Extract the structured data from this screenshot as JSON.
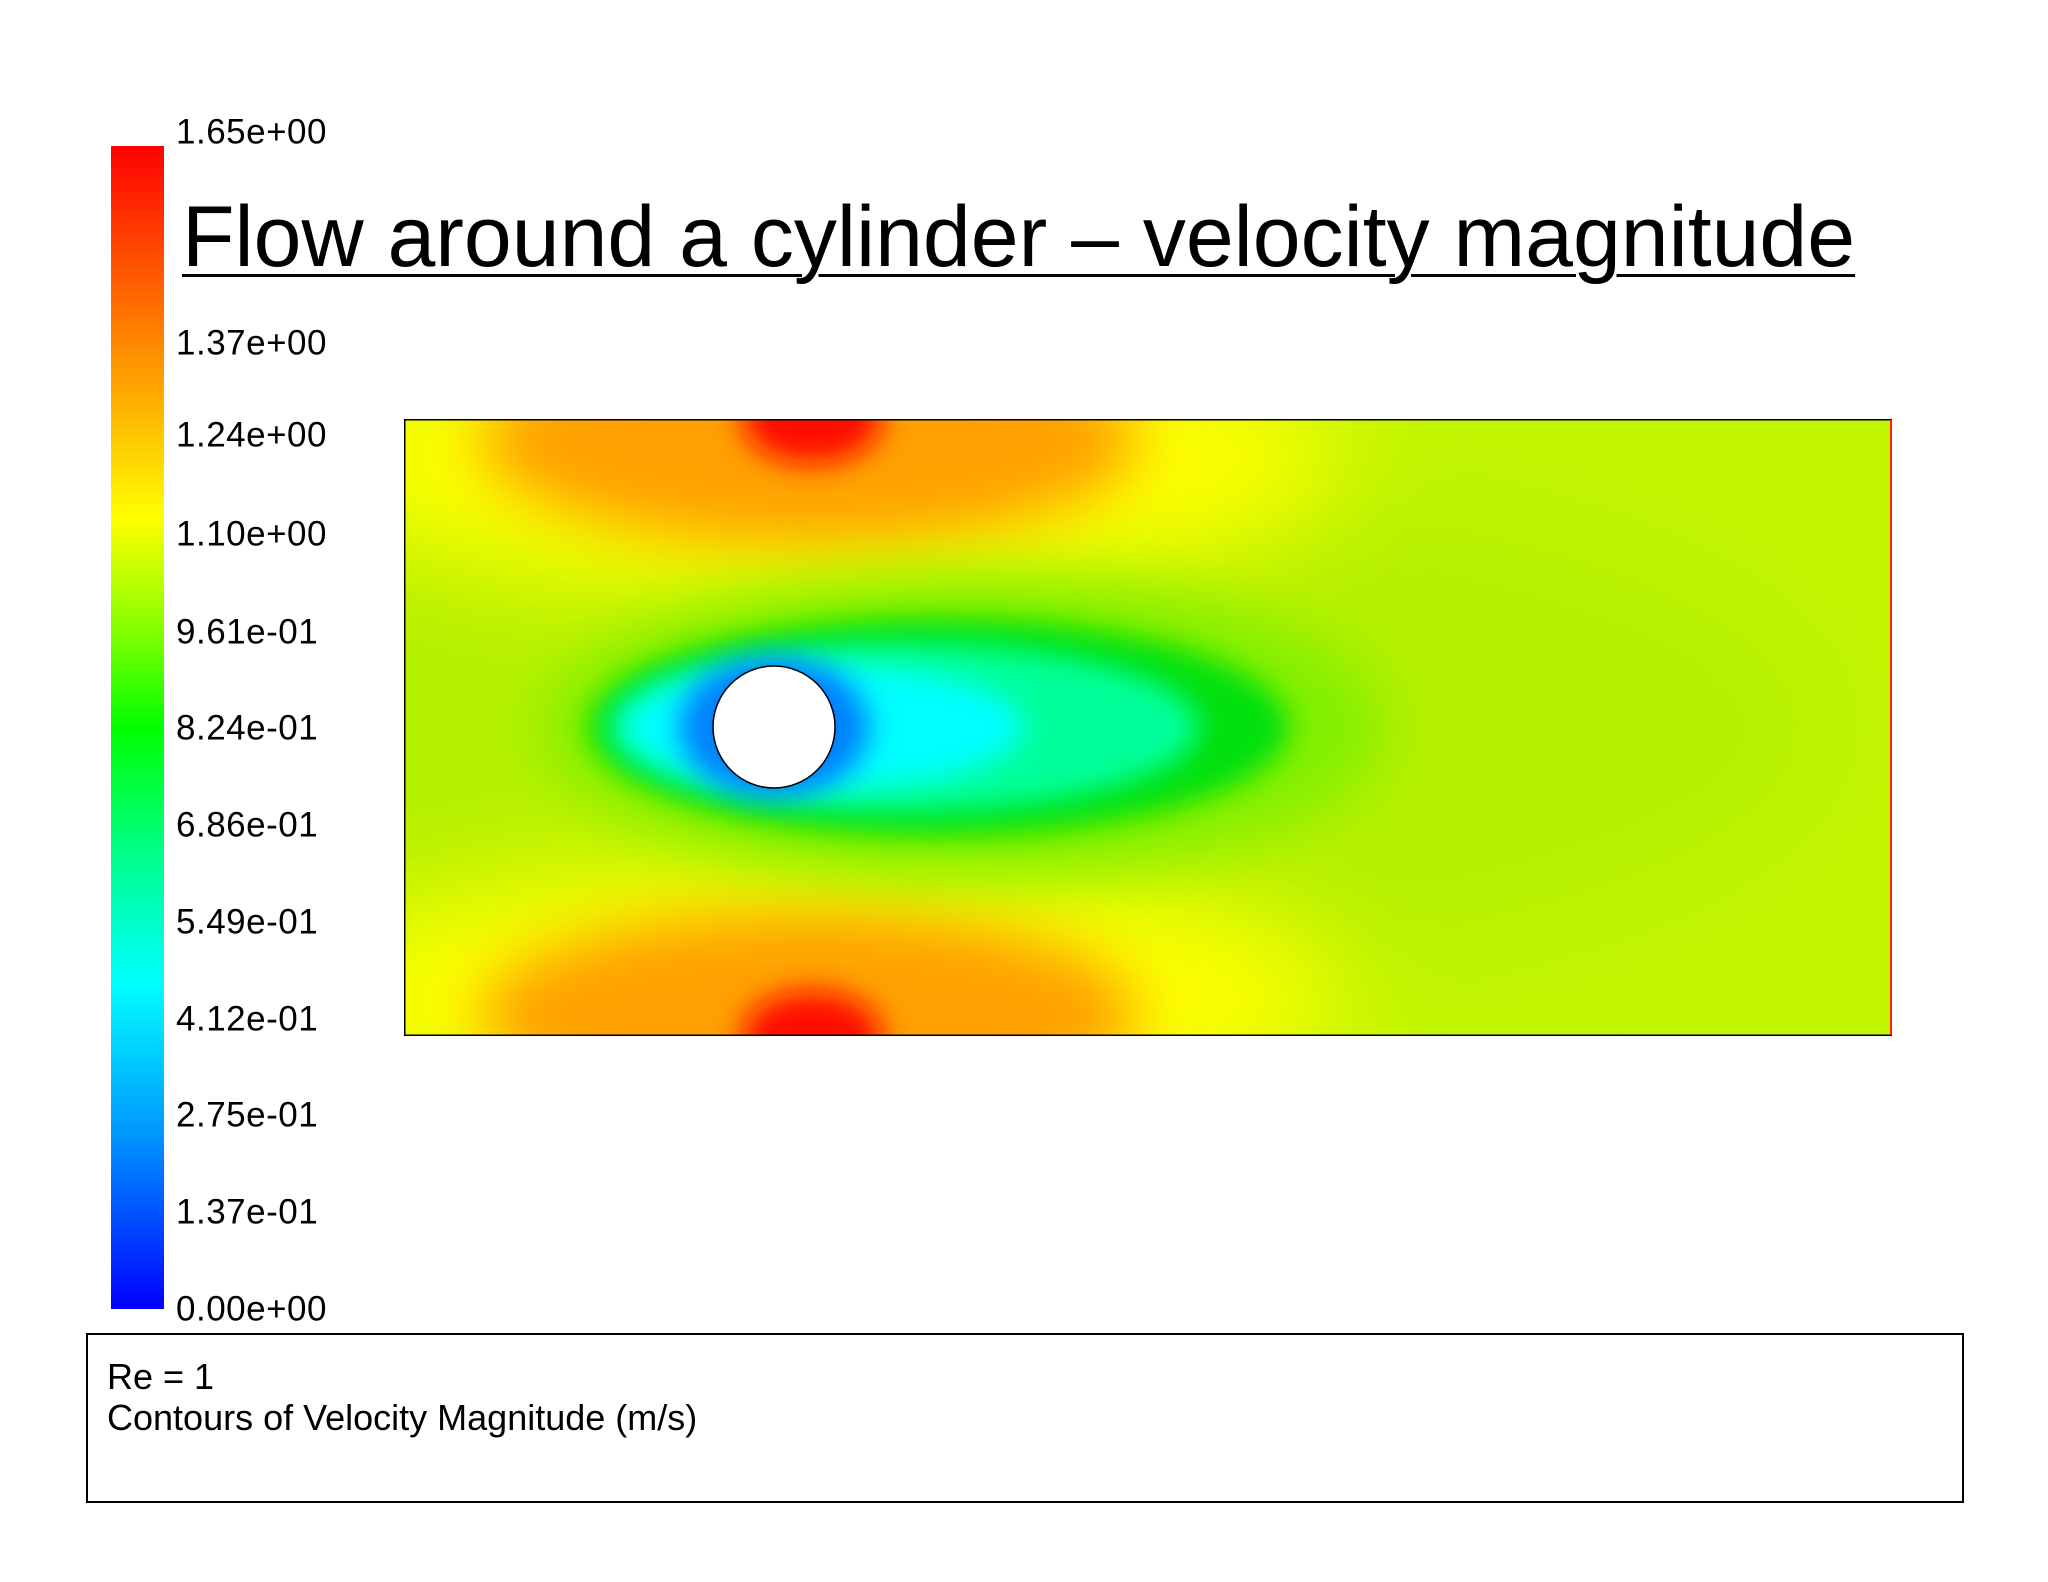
{
  "title": "Flow around a cylinder – velocity magnitude",
  "chart_data": {
    "type": "heatmap",
    "title": "Flow around a cylinder – velocity magnitude",
    "colorbar": {
      "min": 0.0,
      "max": 1.65,
      "tick_labels": [
        "1.65e+00",
        "1.37e+00",
        "1.24e+00",
        "1.10e+00",
        "9.61e-01",
        "8.24e-01",
        "6.86e-01",
        "5.49e-01",
        "4.12e-01",
        "2.75e-01",
        "1.37e-01",
        "0.00e+00"
      ],
      "tick_values": [
        1.65,
        1.37,
        1.24,
        1.1,
        0.961,
        0.824,
        0.686,
        0.549,
        0.412,
        0.275,
        0.137,
        0.0
      ],
      "colors": [
        "#0000ff",
        "#0096ff",
        "#00ffff",
        "#00ff80",
        "#00ff00",
        "#80ff00",
        "#ffff00",
        "#ff8000",
        "#ff0000"
      ]
    },
    "field": {
      "description_units": "m/s",
      "cylinder": {
        "present": true
      },
      "regions": [
        {
          "zone": "cylinder-stagnation",
          "value": 0.0
        },
        {
          "zone": "near-wake",
          "value": 0.55
        },
        {
          "zone": "outer-wake",
          "value": 0.85
        },
        {
          "zone": "far-field",
          "value": 1.02
        },
        {
          "zone": "channel-wall-constriction",
          "value": 1.65
        }
      ]
    }
  },
  "info": {
    "line1": "Re = 1",
    "line2": "Contours of Velocity Magnitude (m/s)"
  }
}
